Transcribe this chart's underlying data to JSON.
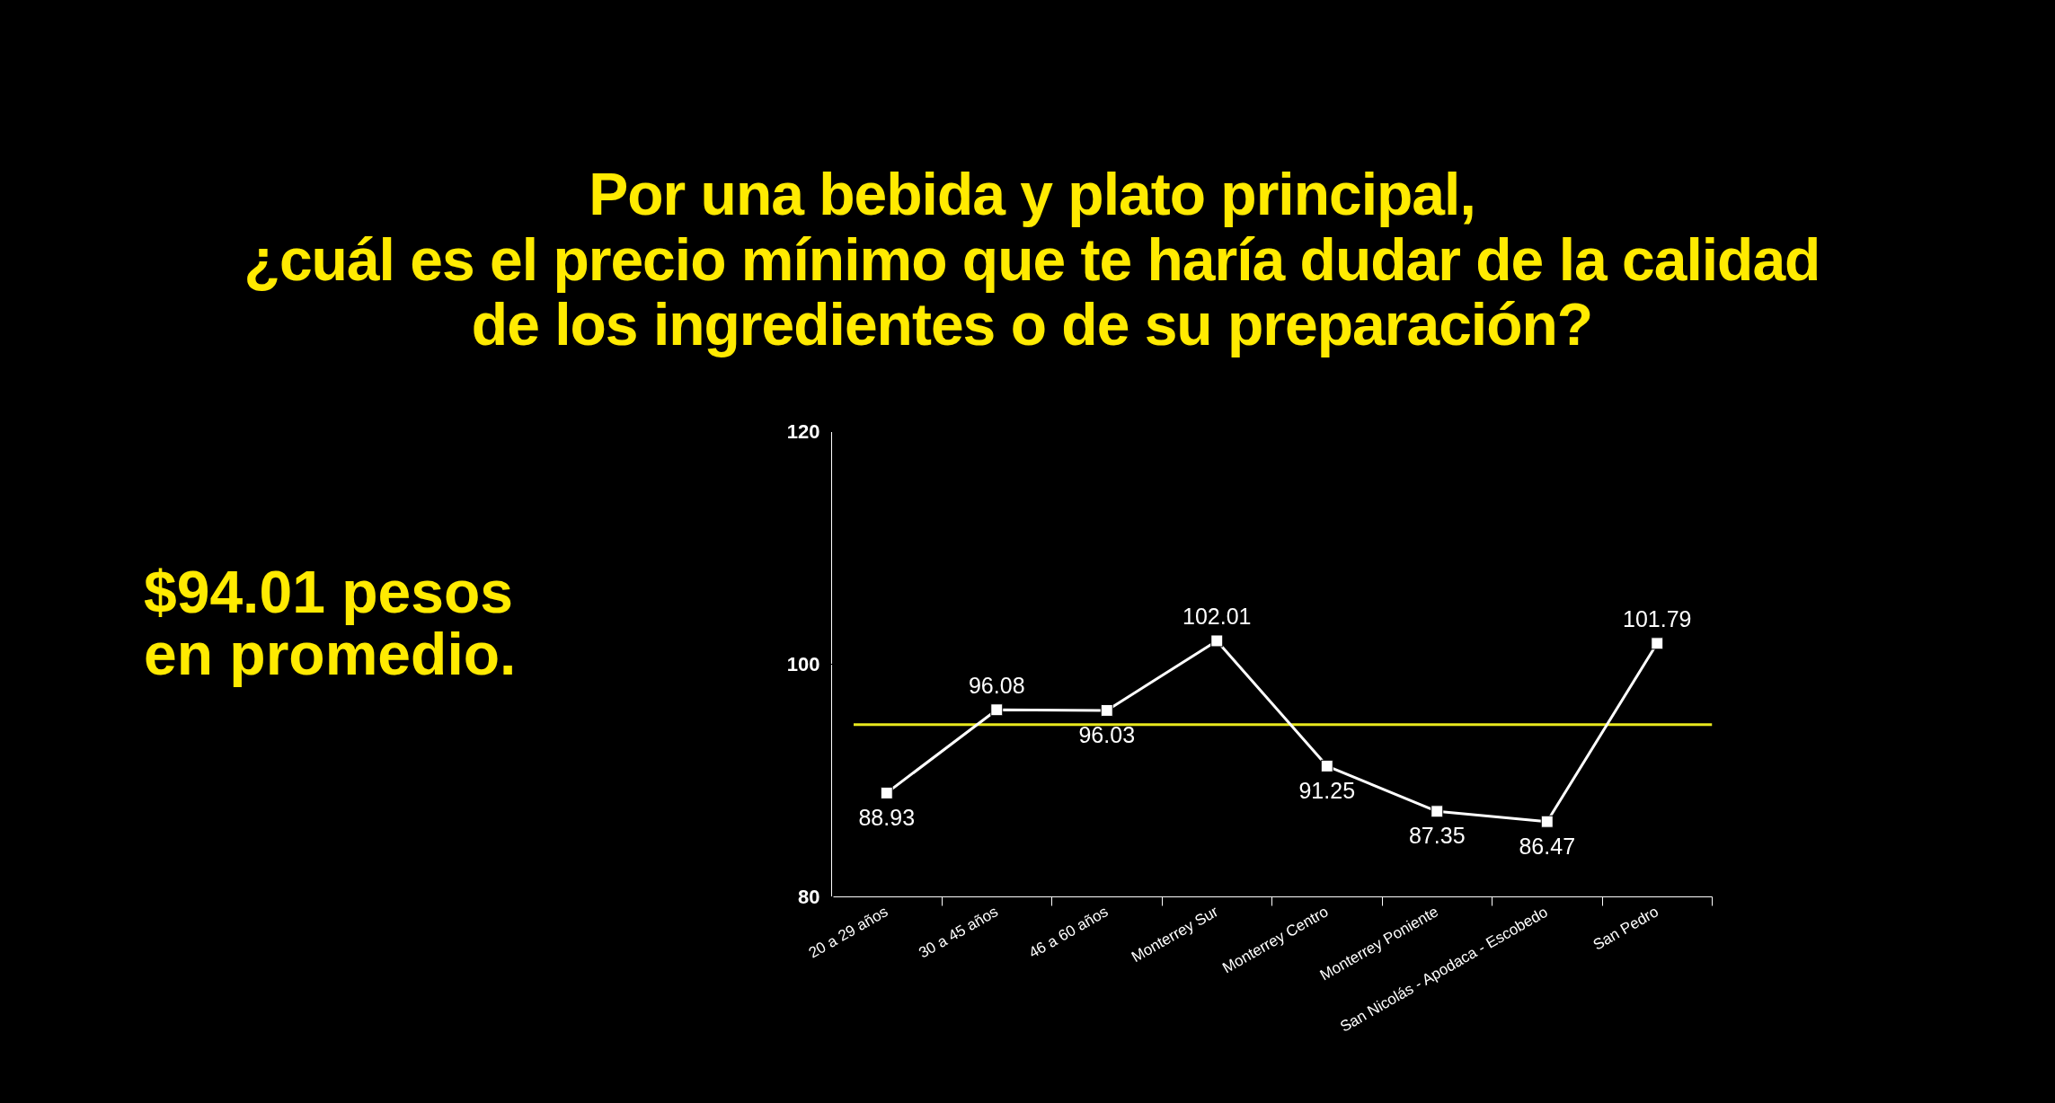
{
  "chart_data": {
    "type": "line",
    "title": "Por una bebida y plato principal,\n¿cuál es el precio mínimo que te haría dudar de la calidad\nde los ingredientes o de su preparación?",
    "annotations": [
      "$94.01 pesos en promedio."
    ],
    "categories": [
      "20 a 29 años",
      "30 a 45 años",
      "46 a 60 años",
      "Monterrey Sur",
      "Monterrey Centro",
      "Monterrey Poniente",
      "San Nicolás - Apodaca - Escobedo",
      "San Pedro"
    ],
    "series": [
      {
        "color": "#ffffff",
        "values": [
          88.93,
          96.08,
          96.03,
          102.01,
          91.25,
          87.35,
          86.47,
          101.79
        ]
      }
    ],
    "ylim": [
      80,
      120
    ],
    "yticks": [
      80,
      100,
      120
    ],
    "ref_lines": [
      {
        "axis": "y",
        "value": 94.8,
        "color": "#e8e81e"
      }
    ],
    "marker": "square",
    "data_labels": true
  }
}
